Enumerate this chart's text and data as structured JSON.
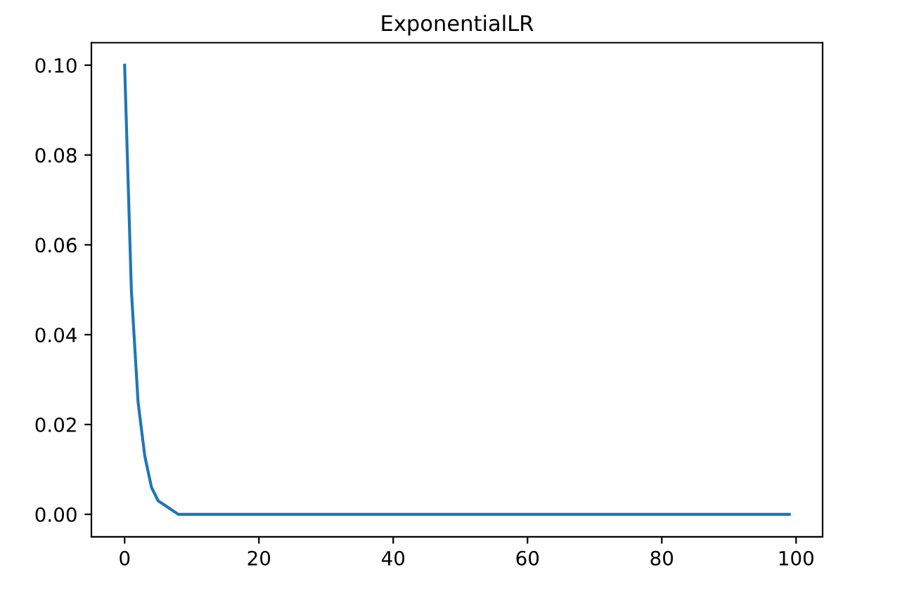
{
  "chart_data": {
    "type": "line",
    "title": "ExponentialLR",
    "x": [
      0,
      1,
      2,
      3,
      4,
      5,
      6,
      7,
      8,
      9,
      10,
      12,
      15,
      20,
      40,
      60,
      80,
      99
    ],
    "series": [
      {
        "color": "#1f77b4",
        "values": [
          0.1,
          0.05,
          0.025,
          0.013,
          0.006,
          0.003,
          0.002,
          0.001,
          0.0,
          0.0,
          0.0,
          0.0,
          0.0,
          0.0,
          0.0,
          0.0,
          0.0,
          0.0
        ]
      }
    ],
    "xlim": [
      -4.95,
      103.95
    ],
    "ylim": [
      -0.005,
      0.105
    ],
    "xticks": [
      0,
      20,
      40,
      60,
      80,
      100
    ],
    "yticks": [
      {
        "value": 0,
        "label": "0.00"
      },
      {
        "value": 0.02,
        "label": "0.02"
      },
      {
        "value": 0.04,
        "label": "0.04"
      },
      {
        "value": 0.06,
        "label": "0.06"
      },
      {
        "value": 0.08,
        "label": "0.08"
      },
      {
        "value": 0.1,
        "label": "0.10"
      }
    ],
    "grid": false
  }
}
